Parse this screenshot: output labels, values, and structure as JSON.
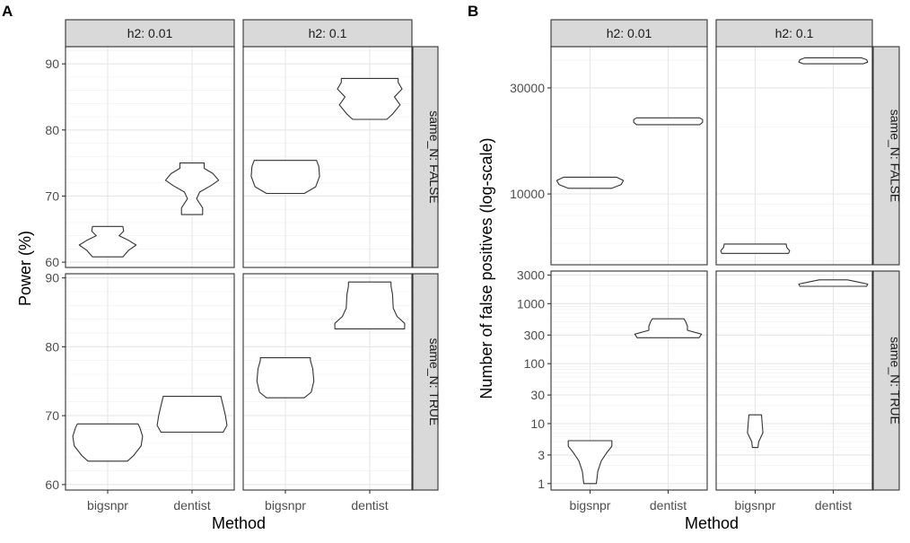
{
  "figure_labels": {
    "panel_a": "A",
    "panel_b": "B"
  },
  "chart_data": [
    {
      "type": "violin",
      "panel": "A",
      "xlabel": "Method",
      "ylabel": "Power (%)",
      "facet_cols": [
        "h2: 0.01",
        "h2: 0.1"
      ],
      "facet_rows": [
        "same_N: FALSE",
        "same_N: TRUE"
      ],
      "categories": [
        "bigsnpr",
        "dentist"
      ],
      "y_scale": "linear",
      "y_ticks": [
        [
          {
            "v": 60,
            "label": "60"
          },
          {
            "v": 70,
            "label": "70"
          },
          {
            "v": 80,
            "label": "80"
          },
          {
            "v": 90,
            "label": "90"
          }
        ],
        [
          {
            "v": 60,
            "label": "60"
          },
          {
            "v": 70,
            "label": "70"
          },
          {
            "v": 80,
            "label": "80"
          },
          {
            "v": 90,
            "label": "90"
          }
        ]
      ],
      "row_ylim": [
        [
          59.2,
          92.6
        ],
        [
          59.2,
          90.6
        ]
      ],
      "grid": true,
      "violins": [
        {
          "col": 0,
          "row": 0,
          "method": "bigsnpr",
          "min": 60.8,
          "max": 65.4,
          "profile": [
            [
              60.8,
              0.4
            ],
            [
              61.8,
              0.55
            ],
            [
              62.6,
              0.75
            ],
            [
              63.3,
              0.55
            ],
            [
              64.0,
              0.3
            ],
            [
              64.7,
              0.42
            ],
            [
              65.4,
              0.4
            ]
          ]
        },
        {
          "col": 0,
          "row": 0,
          "method": "dentist",
          "min": 67.2,
          "max": 75.0,
          "profile": [
            [
              67.2,
              0.28
            ],
            [
              68.2,
              0.28
            ],
            [
              69.6,
              0.12
            ],
            [
              70.6,
              0.2
            ],
            [
              71.6,
              0.5
            ],
            [
              72.4,
              0.7
            ],
            [
              73.4,
              0.55
            ],
            [
              74.2,
              0.32
            ],
            [
              75.0,
              0.32
            ]
          ]
        },
        {
          "col": 1,
          "row": 0,
          "method": "bigsnpr",
          "min": 70.4,
          "max": 75.4,
          "profile": [
            [
              70.4,
              0.5
            ],
            [
              71.4,
              0.8
            ],
            [
              73.0,
              0.9
            ],
            [
              74.5,
              0.88
            ],
            [
              75.4,
              0.82
            ]
          ]
        },
        {
          "col": 1,
          "row": 0,
          "method": "dentist",
          "min": 81.6,
          "max": 87.8,
          "profile": [
            [
              81.6,
              0.45
            ],
            [
              82.4,
              0.6
            ],
            [
              83.8,
              0.8
            ],
            [
              85.0,
              0.65
            ],
            [
              86.2,
              0.85
            ],
            [
              87.2,
              0.75
            ],
            [
              87.8,
              0.75
            ]
          ]
        },
        {
          "col": 0,
          "row": 1,
          "method": "bigsnpr",
          "min": 63.4,
          "max": 68.8,
          "profile": [
            [
              63.4,
              0.52
            ],
            [
              64.2,
              0.68
            ],
            [
              65.6,
              0.88
            ],
            [
              67.0,
              0.92
            ],
            [
              68.2,
              0.85
            ],
            [
              68.8,
              0.8
            ]
          ]
        },
        {
          "col": 0,
          "row": 1,
          "method": "dentist",
          "min": 67.6,
          "max": 72.8,
          "profile": [
            [
              67.6,
              0.82
            ],
            [
              68.6,
              0.92
            ],
            [
              70.0,
              0.88
            ],
            [
              71.4,
              0.82
            ],
            [
              72.8,
              0.76
            ]
          ]
        },
        {
          "col": 1,
          "row": 1,
          "method": "bigsnpr",
          "min": 72.6,
          "max": 78.4,
          "profile": [
            [
              72.6,
              0.5
            ],
            [
              73.4,
              0.68
            ],
            [
              75.0,
              0.75
            ],
            [
              76.8,
              0.72
            ],
            [
              78.0,
              0.66
            ],
            [
              78.4,
              0.66
            ]
          ]
        },
        {
          "col": 1,
          "row": 1,
          "method": "dentist",
          "min": 82.6,
          "max": 89.4,
          "profile": [
            [
              82.6,
              0.92
            ],
            [
              83.4,
              0.92
            ],
            [
              84.4,
              0.72
            ],
            [
              85.6,
              0.62
            ],
            [
              87.6,
              0.6
            ],
            [
              88.8,
              0.56
            ],
            [
              89.4,
              0.56
            ]
          ]
        }
      ]
    },
    {
      "type": "violin",
      "panel": "B",
      "xlabel": "Method",
      "ylabel": "Number of false positives (log-scale)",
      "facet_cols": [
        "h2: 0.01",
        "h2: 0.1"
      ],
      "facet_rows": [
        "same_N: FALSE",
        "same_N: TRUE"
      ],
      "categories": [
        "bigsnpr",
        "dentist"
      ],
      "y_scale": "log",
      "y_ticks": [
        [
          {
            "v": 10000,
            "label": "10000"
          },
          {
            "v": 30000,
            "label": "30000"
          }
        ],
        [
          {
            "v": 1,
            "label": "1"
          },
          {
            "v": 3,
            "label": "3"
          },
          {
            "v": 10,
            "label": "10"
          },
          {
            "v": 30,
            "label": "30"
          },
          {
            "v": 100,
            "label": "100"
          },
          {
            "v": 300,
            "label": "300"
          },
          {
            "v": 1000,
            "label": "1000"
          },
          {
            "v": 3000,
            "label": "3000"
          }
        ]
      ],
      "row_ylim": [
        [
          4800,
          46000
        ],
        [
          0.78,
          3500
        ]
      ],
      "grid": true,
      "violins": [
        {
          "col": 0,
          "row": 0,
          "method": "bigsnpr",
          "min": 10600,
          "max": 11900,
          "profile": [
            [
              10600,
              0.62
            ],
            [
              11000,
              0.88
            ],
            [
              11500,
              0.95
            ],
            [
              11900,
              0.75
            ]
          ]
        },
        {
          "col": 0,
          "row": 0,
          "method": "dentist",
          "min": 20500,
          "max": 22000,
          "profile": [
            [
              20500,
              0.9
            ],
            [
              21000,
              0.98
            ],
            [
              21600,
              0.98
            ],
            [
              22000,
              0.9
            ]
          ]
        },
        {
          "col": 1,
          "row": 0,
          "method": "bigsnpr",
          "min": 5400,
          "max": 5950,
          "profile": [
            [
              5400,
              0.95
            ],
            [
              5550,
              0.98
            ],
            [
              5750,
              0.9
            ],
            [
              5950,
              0.88
            ]
          ]
        },
        {
          "col": 1,
          "row": 0,
          "method": "dentist",
          "min": 38500,
          "max": 41000,
          "profile": [
            [
              38500,
              0.85
            ],
            [
              39200,
              0.98
            ],
            [
              40200,
              0.95
            ],
            [
              41000,
              0.8
            ]
          ]
        },
        {
          "col": 0,
          "row": 1,
          "method": "bigsnpr",
          "min": 1.0,
          "max": 5.2,
          "profile": [
            [
              1.0,
              0.18
            ],
            [
              1.6,
              0.22
            ],
            [
              2.4,
              0.32
            ],
            [
              3.3,
              0.48
            ],
            [
              4.2,
              0.62
            ],
            [
              5.2,
              0.62
            ]
          ]
        },
        {
          "col": 0,
          "row": 1,
          "method": "dentist",
          "min": 270,
          "max": 560,
          "profile": [
            [
              270,
              0.88
            ],
            [
              310,
              0.95
            ],
            [
              360,
              0.55
            ],
            [
              420,
              0.55
            ],
            [
              500,
              0.5
            ],
            [
              560,
              0.45
            ]
          ]
        },
        {
          "col": 1,
          "row": 1,
          "method": "bigsnpr",
          "min": 4.0,
          "max": 14.0,
          "profile": [
            [
              4.0,
              0.08
            ],
            [
              5.0,
              0.1
            ],
            [
              7.0,
              0.22
            ],
            [
              10.0,
              0.2
            ],
            [
              14.0,
              0.18
            ]
          ]
        },
        {
          "col": 1,
          "row": 1,
          "method": "dentist",
          "min": 1950,
          "max": 2500,
          "profile": [
            [
              1950,
              0.95
            ],
            [
              2120,
              0.98
            ],
            [
              2300,
              0.7
            ],
            [
              2500,
              0.4
            ]
          ]
        }
      ]
    }
  ]
}
